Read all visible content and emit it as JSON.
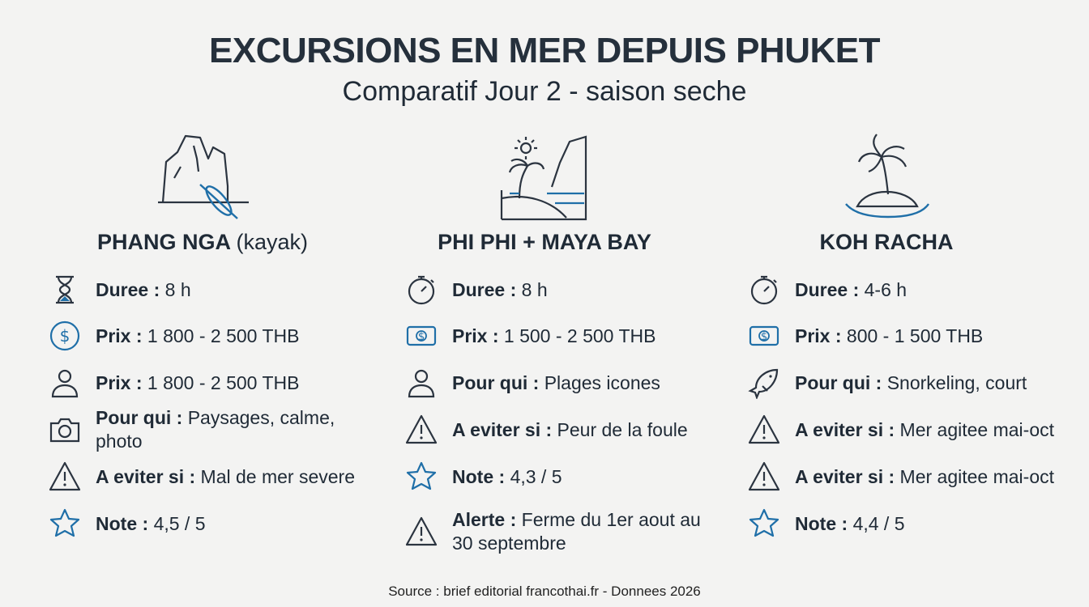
{
  "header": {
    "title": "EXCURSIONS EN MER DEPUIS PHUKET",
    "subtitle": "Comparatif Jour 2 - saison seche"
  },
  "columns": [
    {
      "title": "PHANG NGA",
      "title_note": "(kayak)",
      "rows": [
        {
          "label": "Duree :",
          "value": "8 h"
        },
        {
          "label": "Prix :",
          "value": "1 800 - 2 500 THB"
        },
        {
          "label": "Prix :",
          "value": "1 800 - 2 500 THB"
        },
        {
          "label": "Pour qui :",
          "value": "Paysages, calme, photo"
        },
        {
          "label": "A eviter si :",
          "value": "Mal de mer severe"
        },
        {
          "label": "Note :",
          "value": "4,5 / 5"
        }
      ]
    },
    {
      "title": "PHI PHI + MAYA BAY",
      "rows": [
        {
          "label": "Duree :",
          "value": "8 h"
        },
        {
          "label": "Prix :",
          "value": "1 500 - 2 500 THB"
        },
        {
          "label": "Pour qui :",
          "value": "Plages icones"
        },
        {
          "label": "A eviter si :",
          "value": "Peur de la foule"
        },
        {
          "label": "Note :",
          "value": "4,3 / 5"
        },
        {
          "label": "Alerte :",
          "value": "Ferme du 1er aout au 30 septembre"
        }
      ]
    },
    {
      "title": "KOH RACHA",
      "rows": [
        {
          "label": "Duree :",
          "value": "4-6 h"
        },
        {
          "label": "Prix :",
          "value": "800 - 1 500 THB"
        },
        {
          "label": "Pour qui :",
          "value": "Snorkeling, court"
        },
        {
          "label": "A eviter si :",
          "value": "Mer agitee mai-oct"
        },
        {
          "label": "A eviter si :",
          "value": "Mer agitee mai-oct"
        },
        {
          "label": "Note :",
          "value": "4,4 / 5"
        }
      ]
    }
  ],
  "source": "Source : brief editorial francothai.fr - Donnees 2026"
}
